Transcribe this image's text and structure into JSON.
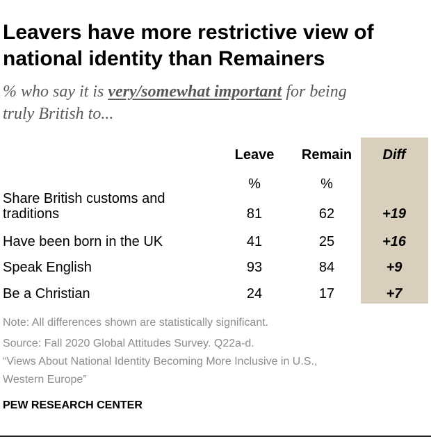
{
  "title_line1": "Leavers have more restrictive view of",
  "title_line2": "national identity than Remainers",
  "subtitle": {
    "pre": "% who say it is ",
    "emphasis": "very/somewhat important",
    "post": " for being",
    "line2": "truly British to..."
  },
  "columns": {
    "leave": "Leave",
    "remain": "Remain",
    "diff": "Diff",
    "pct_symbol": "%"
  },
  "colors": {
    "diff_column_bg": "#d8d0bd",
    "title": "#000000",
    "subtitle": "#595959",
    "notes": "#8c8c8c"
  },
  "chart_data": {
    "type": "table",
    "title": "Leavers have more restrictive view of national identity than Remainers",
    "subtitle": "% who say it is very/somewhat important for being truly British to...",
    "columns": [
      "Leave",
      "Remain",
      "Diff"
    ],
    "rows": [
      {
        "label_lines": [
          "Share British customs and",
          "traditions"
        ],
        "leave": "81",
        "remain": "62",
        "diff": "+19"
      },
      {
        "label_lines": [
          "Have been born in the UK"
        ],
        "leave": "41",
        "remain": "25",
        "diff": "+16"
      },
      {
        "label_lines": [
          "Speak English"
        ],
        "leave": "93",
        "remain": "84",
        "diff": "+9"
      },
      {
        "label_lines": [
          "Be a Christian"
        ],
        "leave": "24",
        "remain": "17",
        "diff": "+7"
      }
    ]
  },
  "notes": {
    "note": "Note: All differences shown are statistically significant.",
    "source": "Source: Fall 2020 Global Attitudes Survey. Q22a-d.",
    "report_line1": "“Views About National Identity Becoming More Inclusive in U.S.,",
    "report_line2": "Western Europe”"
  },
  "credit": "PEW RESEARCH CENTER"
}
